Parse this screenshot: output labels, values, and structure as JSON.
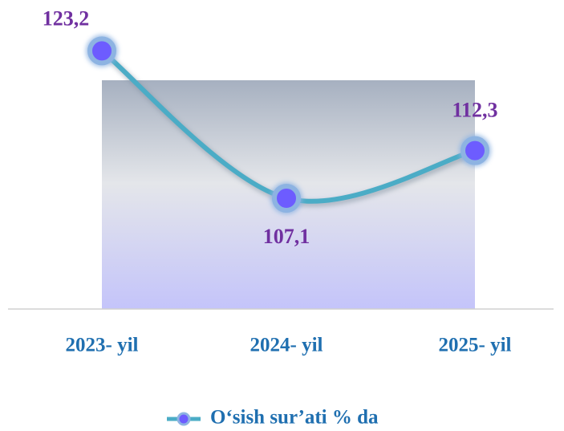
{
  "chart_data": {
    "type": "line",
    "categories": [
      "2023- yil",
      "2024- yil",
      "2025- yil"
    ],
    "series": [
      {
        "name": "O‘sish sur’ati  % da",
        "color": "#4bacc6",
        "values": [
          123.2,
          107.1,
          112.3
        ],
        "value_labels": [
          "123,2",
          "107,1",
          "112,3"
        ]
      }
    ],
    "ylim": [
      95,
      127
    ],
    "legend": "bottom"
  }
}
